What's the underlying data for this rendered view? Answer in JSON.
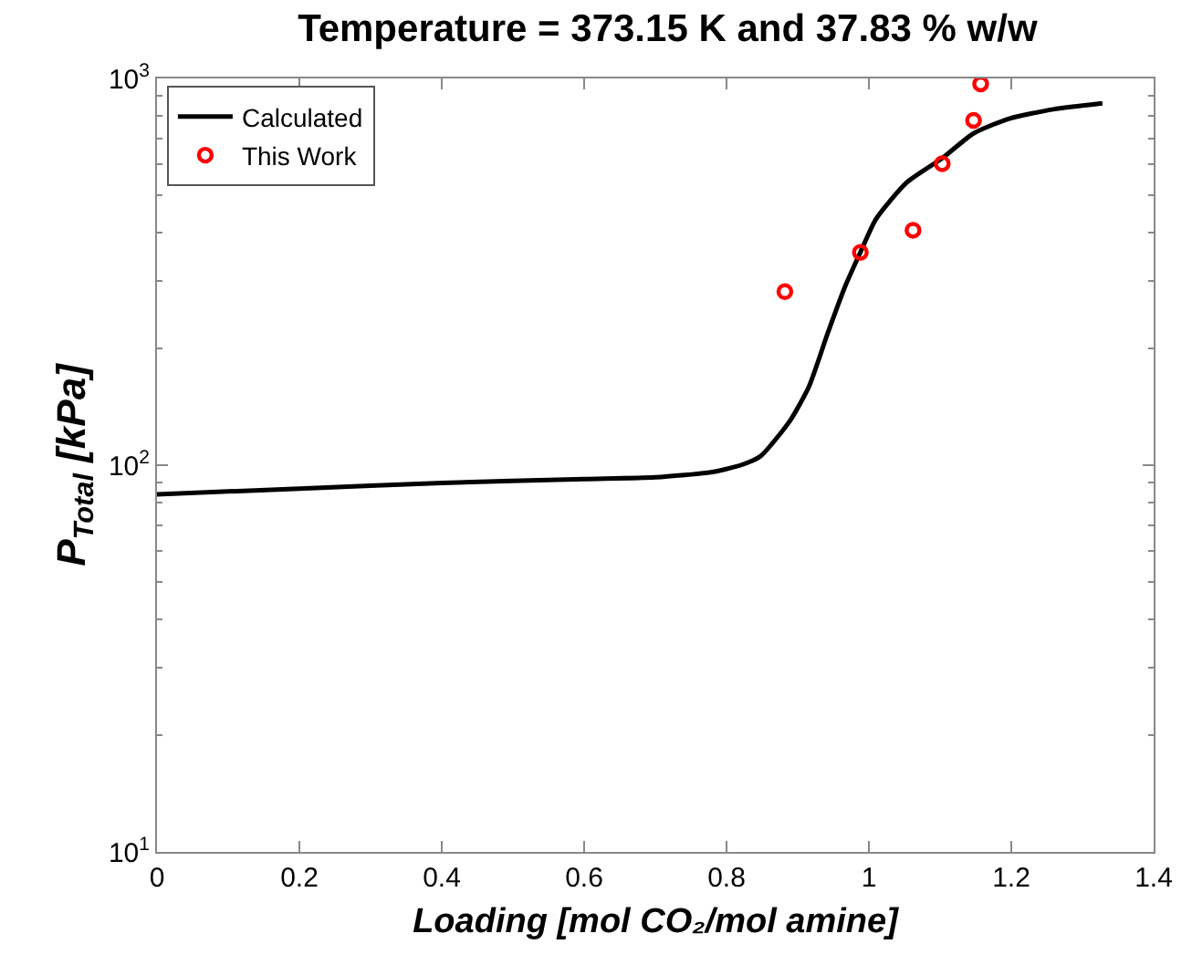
{
  "chart_data": {
    "type": "line",
    "title": "Temperature = 373.15 K and 37.83 % w/w",
    "xlabel": "Loading [mol CO₂/mol amine]",
    "ylabel": "P$_{Total}$ [kPa]",
    "log": "y",
    "legend": "top left",
    "xlim": [
      0,
      1.4
    ],
    "xticks": [
      0,
      0.2,
      0.4,
      0.6,
      0.8,
      1,
      1.2,
      1.4
    ],
    "ylim": [
      10,
      1000
    ],
    "yticks": [
      {
        "value": 10,
        "label": "10$^{1}$"
      },
      {
        "value": 100,
        "label": "10$^{2}$"
      },
      {
        "value": 1000,
        "label": "10$^{3}$"
      }
    ],
    "series": [
      {
        "name": "Calculated",
        "color": "#000000",
        "marker": "none",
        "line_style": "solid",
        "x": [
          0,
          0.2,
          0.4,
          0.6,
          0.7,
          0.78,
          0.82,
          0.848,
          0.89,
          0.916,
          0.942,
          0.967,
          0.988,
          1.01,
          1.053,
          1.103,
          1.147,
          1.197,
          1.259,
          1.328
        ],
        "values": [
          84,
          87,
          90,
          92,
          93,
          96,
          100,
          105.6,
          131,
          160,
          219,
          291,
          355,
          433,
          538,
          622,
          721,
          787,
          832,
          862
        ]
      },
      {
        "name": "This Work",
        "type": "scatter",
        "color": "#ff0000",
        "marker": "circle",
        "x": [
          0.882,
          0.988,
          1.062,
          1.103,
          1.147,
          1.157
        ],
        "values": [
          281,
          355,
          405,
          602,
          779,
          968
        ]
      }
    ]
  }
}
